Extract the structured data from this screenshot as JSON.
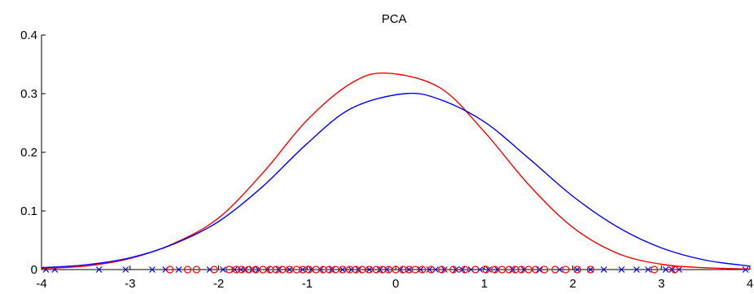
{
  "chart_data": {
    "type": "line",
    "title": "PCA",
    "xlabel": "",
    "ylabel": "",
    "xlim": [
      -4,
      4
    ],
    "ylim": [
      0,
      0.4
    ],
    "xticks": [
      -4,
      -3,
      -2,
      -1,
      0,
      1,
      2,
      3,
      4
    ],
    "yticks": [
      0,
      0.1,
      0.2,
      0.3,
      0.4
    ],
    "grid": false,
    "series": [
      {
        "color": "#ff0000",
        "x": [
          -4,
          -3.5,
          -3,
          -2.5,
          -2,
          -1.5,
          -1,
          -0.5,
          -0.1,
          0.5,
          1,
          1.5,
          2,
          2.5,
          3,
          3.5,
          4
        ],
        "y": [
          0.002,
          0.006,
          0.019,
          0.045,
          0.088,
          0.165,
          0.255,
          0.318,
          0.335,
          0.31,
          0.235,
          0.145,
          0.072,
          0.028,
          0.009,
          0.003,
          0.001
        ]
      },
      {
        "color": "#0000ff",
        "x": [
          -4,
          -3.5,
          -3,
          -2.5,
          -2,
          -1.5,
          -1,
          -0.5,
          0.1,
          0.5,
          1,
          1.5,
          2,
          2.5,
          3,
          3.5,
          4
        ],
        "y": [
          0.003,
          0.008,
          0.02,
          0.044,
          0.082,
          0.142,
          0.215,
          0.275,
          0.3,
          0.29,
          0.252,
          0.19,
          0.125,
          0.073,
          0.037,
          0.016,
          0.006
        ]
      }
    ],
    "markers": [
      {
        "color": "#0000ff",
        "symbol": "x",
        "y": 0,
        "x": [
          -3.95,
          -3.85,
          -3.35,
          -3.05,
          -2.75,
          -2.6,
          -2.45,
          -2.1,
          -1.95,
          -1.82,
          -1.75,
          -1.7,
          -1.62,
          -1.55,
          -1.45,
          -1.32,
          -1.2,
          -1.05,
          -0.95,
          -0.85,
          -0.72,
          -0.6,
          -0.5,
          -0.42,
          -0.3,
          -0.18,
          -0.1,
          0.05,
          0.15,
          0.28,
          0.38,
          0.45,
          0.55,
          0.68,
          0.75,
          0.85,
          0.95,
          1.05,
          1.15,
          1.32,
          1.45,
          1.62,
          1.85,
          2.05,
          2.2,
          2.35,
          2.55,
          2.72,
          2.85,
          3.05,
          3.12,
          3.2,
          3.95
        ]
      },
      {
        "color": "#ff0000",
        "symbol": "o",
        "y": 0,
        "x": [
          -2.55,
          -2.35,
          -2.25,
          -2.05,
          -1.88,
          -1.8,
          -1.74,
          -1.66,
          -1.58,
          -1.5,
          -1.42,
          -1.35,
          -1.28,
          -1.2,
          -1.12,
          -1.05,
          -0.98,
          -0.9,
          -0.82,
          -0.75,
          -0.68,
          -0.6,
          -0.52,
          -0.45,
          -0.38,
          -0.3,
          -0.22,
          -0.15,
          -0.08,
          0,
          0.08,
          0.15,
          0.22,
          0.3,
          0.4,
          0.52,
          0.65,
          0.78,
          0.9,
          1.02,
          1.12,
          1.2,
          1.28,
          1.35,
          1.42,
          1.5,
          1.58,
          1.68,
          1.8,
          1.92,
          2.05,
          2.2,
          2.92,
          3.15
        ]
      }
    ]
  }
}
